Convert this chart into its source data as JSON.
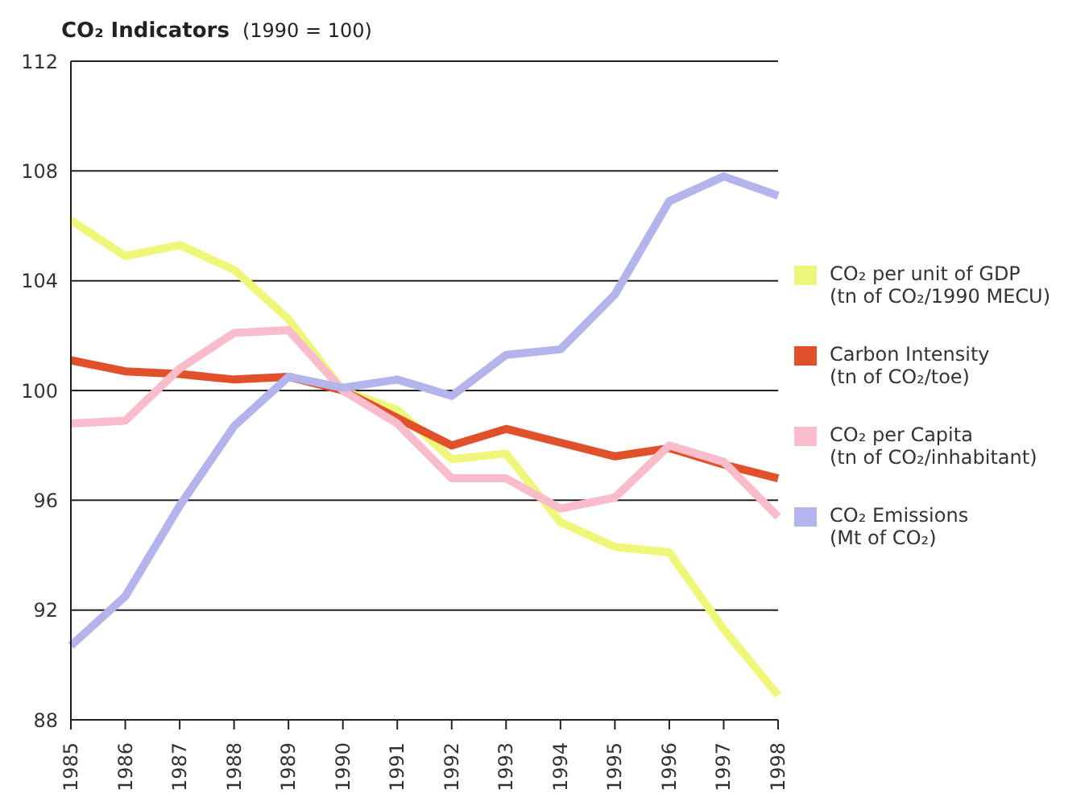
{
  "chart_data": {
    "type": "line",
    "title": "CO₂ Indicators",
    "subtitle": "(1990 = 100)",
    "categories": [
      "1985",
      "1986",
      "1987",
      "1988",
      "1989",
      "1990",
      "1991",
      "1992",
      "1993",
      "1994",
      "1995",
      "1996",
      "1997",
      "1998"
    ],
    "series": [
      {
        "name": "CO₂ per unit of GDP\n(tn of CO₂/1990 MECU)",
        "color": "#eef77a",
        "values": [
          106.2,
          104.9,
          105.3,
          104.4,
          102.6,
          100.0,
          99.3,
          97.5,
          97.7,
          95.2,
          94.3,
          94.1,
          91.3,
          88.9
        ]
      },
      {
        "name": "Carbon Intensity\n(tn of CO₂/toe)",
        "color": "#e0502a",
        "values": [
          101.1,
          100.7,
          100.6,
          100.4,
          100.5,
          100.0,
          99.0,
          98.0,
          98.6,
          98.1,
          97.6,
          97.9,
          97.3,
          96.8
        ]
      },
      {
        "name": "CO₂ per Capita\n(tn of CO₂/inhabitant)",
        "color": "#f8bccb",
        "values": [
          98.8,
          98.9,
          100.8,
          102.1,
          102.2,
          100.0,
          98.8,
          96.8,
          96.8,
          95.7,
          96.1,
          98.0,
          97.4,
          95.4
        ]
      },
      {
        "name": "CO₂ Emissions\n(Mt of CO₂)",
        "color": "#b4b4ec",
        "values": [
          90.7,
          92.5,
          95.8,
          98.7,
          100.5,
          100.1,
          100.4,
          99.8,
          101.3,
          101.5,
          103.5,
          106.9,
          107.8,
          107.1
        ]
      }
    ],
    "ylim": [
      88,
      112
    ],
    "yticks": [
      88,
      92,
      96,
      100,
      104,
      108,
      112
    ],
    "grid": "y",
    "legend": "right",
    "marker": "none",
    "line_style": "solid"
  }
}
